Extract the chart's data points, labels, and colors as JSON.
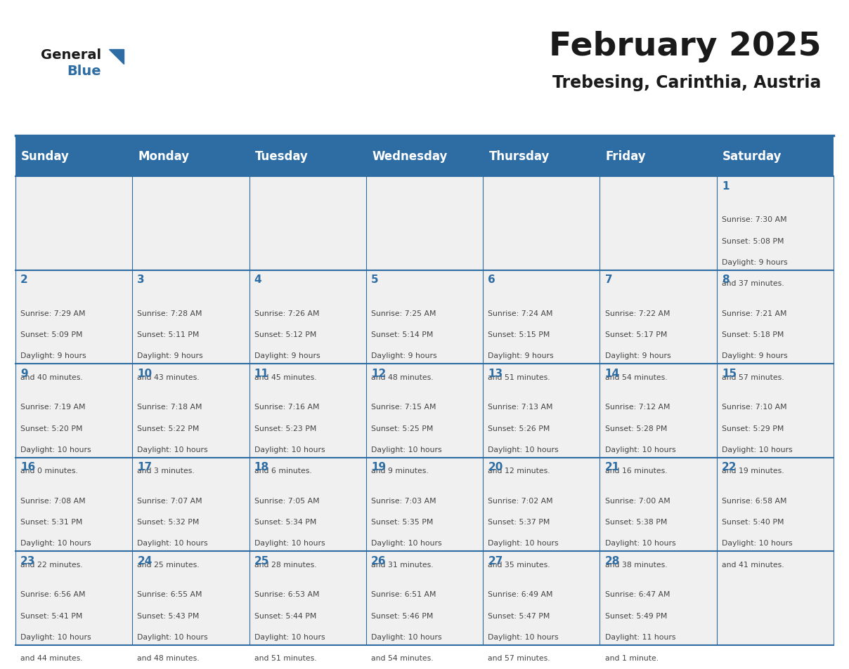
{
  "title": "February 2025",
  "subtitle": "Trebesing, Carinthia, Austria",
  "header_bg": "#2E6DA4",
  "header_text_color": "#FFFFFF",
  "cell_bg_light": "#F0F0F0",
  "grid_line_color": "#2E6DA4",
  "day_number_color": "#2E6DA4",
  "text_color": "#444444",
  "days_of_week": [
    "Sunday",
    "Monday",
    "Tuesday",
    "Wednesday",
    "Thursday",
    "Friday",
    "Saturday"
  ],
  "weeks": [
    [
      {
        "day": null,
        "info": null
      },
      {
        "day": null,
        "info": null
      },
      {
        "day": null,
        "info": null
      },
      {
        "day": null,
        "info": null
      },
      {
        "day": null,
        "info": null
      },
      {
        "day": null,
        "info": null
      },
      {
        "day": 1,
        "info": "Sunrise: 7:30 AM\nSunset: 5:08 PM\nDaylight: 9 hours\nand 37 minutes."
      }
    ],
    [
      {
        "day": 2,
        "info": "Sunrise: 7:29 AM\nSunset: 5:09 PM\nDaylight: 9 hours\nand 40 minutes."
      },
      {
        "day": 3,
        "info": "Sunrise: 7:28 AM\nSunset: 5:11 PM\nDaylight: 9 hours\nand 43 minutes."
      },
      {
        "day": 4,
        "info": "Sunrise: 7:26 AM\nSunset: 5:12 PM\nDaylight: 9 hours\nand 45 minutes."
      },
      {
        "day": 5,
        "info": "Sunrise: 7:25 AM\nSunset: 5:14 PM\nDaylight: 9 hours\nand 48 minutes."
      },
      {
        "day": 6,
        "info": "Sunrise: 7:24 AM\nSunset: 5:15 PM\nDaylight: 9 hours\nand 51 minutes."
      },
      {
        "day": 7,
        "info": "Sunrise: 7:22 AM\nSunset: 5:17 PM\nDaylight: 9 hours\nand 54 minutes."
      },
      {
        "day": 8,
        "info": "Sunrise: 7:21 AM\nSunset: 5:18 PM\nDaylight: 9 hours\nand 57 minutes."
      }
    ],
    [
      {
        "day": 9,
        "info": "Sunrise: 7:19 AM\nSunset: 5:20 PM\nDaylight: 10 hours\nand 0 minutes."
      },
      {
        "day": 10,
        "info": "Sunrise: 7:18 AM\nSunset: 5:22 PM\nDaylight: 10 hours\nand 3 minutes."
      },
      {
        "day": 11,
        "info": "Sunrise: 7:16 AM\nSunset: 5:23 PM\nDaylight: 10 hours\nand 6 minutes."
      },
      {
        "day": 12,
        "info": "Sunrise: 7:15 AM\nSunset: 5:25 PM\nDaylight: 10 hours\nand 9 minutes."
      },
      {
        "day": 13,
        "info": "Sunrise: 7:13 AM\nSunset: 5:26 PM\nDaylight: 10 hours\nand 12 minutes."
      },
      {
        "day": 14,
        "info": "Sunrise: 7:12 AM\nSunset: 5:28 PM\nDaylight: 10 hours\nand 16 minutes."
      },
      {
        "day": 15,
        "info": "Sunrise: 7:10 AM\nSunset: 5:29 PM\nDaylight: 10 hours\nand 19 minutes."
      }
    ],
    [
      {
        "day": 16,
        "info": "Sunrise: 7:08 AM\nSunset: 5:31 PM\nDaylight: 10 hours\nand 22 minutes."
      },
      {
        "day": 17,
        "info": "Sunrise: 7:07 AM\nSunset: 5:32 PM\nDaylight: 10 hours\nand 25 minutes."
      },
      {
        "day": 18,
        "info": "Sunrise: 7:05 AM\nSunset: 5:34 PM\nDaylight: 10 hours\nand 28 minutes."
      },
      {
        "day": 19,
        "info": "Sunrise: 7:03 AM\nSunset: 5:35 PM\nDaylight: 10 hours\nand 31 minutes."
      },
      {
        "day": 20,
        "info": "Sunrise: 7:02 AM\nSunset: 5:37 PM\nDaylight: 10 hours\nand 35 minutes."
      },
      {
        "day": 21,
        "info": "Sunrise: 7:00 AM\nSunset: 5:38 PM\nDaylight: 10 hours\nand 38 minutes."
      },
      {
        "day": 22,
        "info": "Sunrise: 6:58 AM\nSunset: 5:40 PM\nDaylight: 10 hours\nand 41 minutes."
      }
    ],
    [
      {
        "day": 23,
        "info": "Sunrise: 6:56 AM\nSunset: 5:41 PM\nDaylight: 10 hours\nand 44 minutes."
      },
      {
        "day": 24,
        "info": "Sunrise: 6:55 AM\nSunset: 5:43 PM\nDaylight: 10 hours\nand 48 minutes."
      },
      {
        "day": 25,
        "info": "Sunrise: 6:53 AM\nSunset: 5:44 PM\nDaylight: 10 hours\nand 51 minutes."
      },
      {
        "day": 26,
        "info": "Sunrise: 6:51 AM\nSunset: 5:46 PM\nDaylight: 10 hours\nand 54 minutes."
      },
      {
        "day": 27,
        "info": "Sunrise: 6:49 AM\nSunset: 5:47 PM\nDaylight: 10 hours\nand 57 minutes."
      },
      {
        "day": 28,
        "info": "Sunrise: 6:47 AM\nSunset: 5:49 PM\nDaylight: 11 hours\nand 1 minute."
      },
      {
        "day": null,
        "info": null
      }
    ]
  ],
  "logo_general_color": "#1a1a1a",
  "logo_blue_color": "#2E6DA4",
  "logo_triangle_color": "#2E6DA4"
}
